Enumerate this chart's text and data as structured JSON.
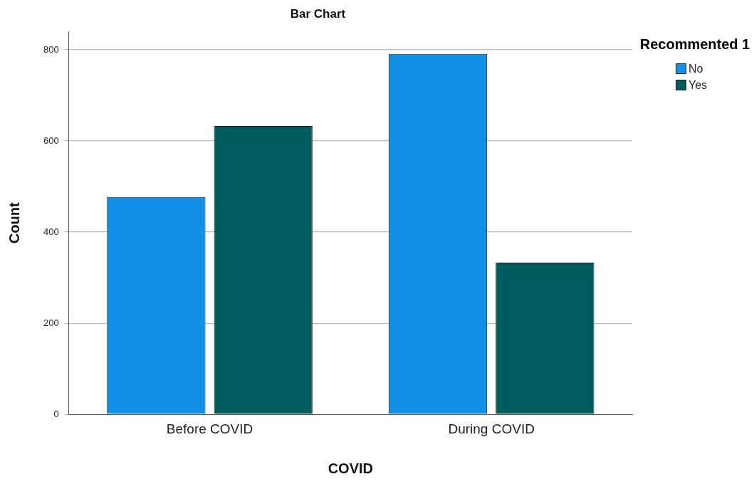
{
  "chart_data": {
    "type": "bar",
    "title": "Bar Chart",
    "xlabel": "COVID",
    "ylabel": "Count",
    "legend_title": "Recommented 1",
    "categories": [
      "Before COVID",
      "During COVID"
    ],
    "series": [
      {
        "name": "No",
        "color": "#1192e8",
        "values": [
          477,
          791
        ]
      },
      {
        "name": "Yes",
        "color": "#005d5d",
        "values": [
          633,
          333
        ]
      }
    ],
    "ylim": [
      0,
      840
    ],
    "yticks": [
      0,
      200,
      400,
      600,
      800
    ],
    "grid": "y",
    "legend": "top right"
  }
}
